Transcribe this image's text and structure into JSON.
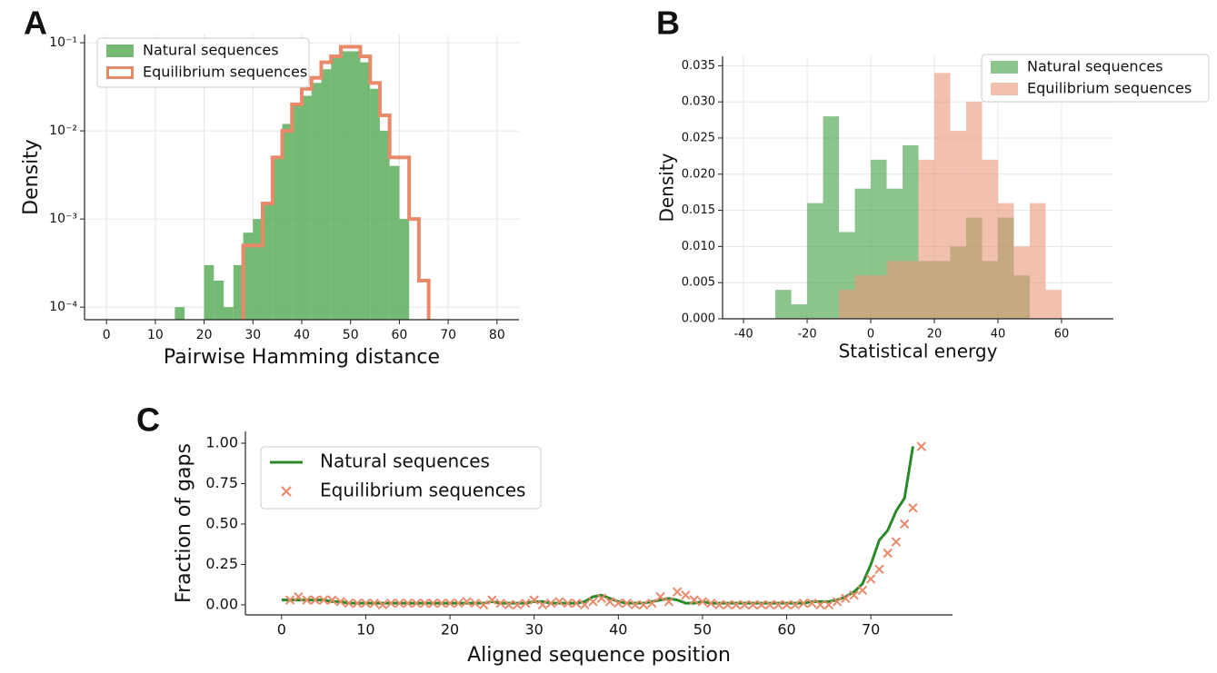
{
  "chart_data": [
    {
      "type": "histogram",
      "panel": "A",
      "xlabel": "Pairwise Hamming distance",
      "ylabel": "Density",
      "yscale": "log",
      "grid": true,
      "legend": "upper left",
      "xlim": [
        -4.5,
        84.5
      ],
      "ylim": [
        7.2e-05,
        0.124
      ],
      "xticks": [
        0,
        10,
        20,
        30,
        40,
        50,
        60,
        70,
        80
      ],
      "yticks": [
        {
          "value": 0.0001,
          "label": "10⁻⁴"
        },
        {
          "value": 0.001,
          "label": "10⁻³"
        },
        {
          "value": 0.01,
          "label": "10⁻²"
        },
        {
          "value": 0.1,
          "label": "10⁻¹"
        }
      ],
      "series": [
        {
          "name": "Natural sequences",
          "style": "filled",
          "color": "#4da64d",
          "bins": [
            14,
            16,
            18,
            20,
            22,
            24,
            26,
            28,
            30,
            32,
            34,
            36,
            38,
            40,
            42,
            44,
            46,
            48,
            50,
            52,
            54,
            56,
            58,
            60,
            62
          ],
          "values": [
            0.0001,
            0,
            0,
            0.0003,
            0.0002,
            0.0001,
            0.0003,
            0.0007,
            0.001,
            0.0015,
            0.005,
            0.012,
            0.02,
            0.025,
            0.035,
            0.05,
            0.07,
            0.08,
            0.08,
            0.06,
            0.03,
            0.01,
            0.004,
            0.001
          ]
        },
        {
          "name": "Equilibrium sequences",
          "style": "step",
          "color": "#e8896a",
          "bins": [
            28,
            30,
            32,
            34,
            36,
            38,
            40,
            42,
            44,
            46,
            48,
            50,
            52,
            54,
            56,
            58,
            60,
            62,
            64,
            66
          ],
          "values": [
            0.0005,
            0.0005,
            0.0015,
            0.005,
            0.01,
            0.02,
            0.03,
            0.04,
            0.06,
            0.07,
            0.09,
            0.09,
            0.07,
            0.035,
            0.015,
            0.005,
            0.005,
            0.001,
            0.0002
          ]
        }
      ]
    },
    {
      "type": "histogram",
      "panel": "B",
      "xlabel": "Statistical energy",
      "ylabel": "Density",
      "yscale": "linear",
      "grid": true,
      "legend": "upper right",
      "xlim": [
        -46.6,
        76.3
      ],
      "ylim": [
        0,
        0.0363
      ],
      "xticks": [
        -40,
        -20,
        0,
        20,
        40,
        60
      ],
      "yticks": [
        {
          "value": 0,
          "label": "0.000"
        },
        0.005,
        {
          "value": 0.01,
          "label": "0.010"
        },
        0.015,
        {
          "value": 0.02,
          "label": "0.020"
        },
        0.025,
        {
          "value": 0.03,
          "label": "0.030"
        },
        0.035
      ],
      "series": [
        {
          "name": "Natural sequences",
          "style": "filled",
          "color": "#3f9f3f",
          "bins": [
            -30,
            -25,
            -20,
            -15,
            -10,
            -5,
            0,
            5,
            10,
            15,
            20,
            25,
            30,
            35,
            40,
            45,
            50
          ],
          "values": [
            0.004,
            0.002,
            0.016,
            0.028,
            0.012,
            0.018,
            0.022,
            0.018,
            0.024,
            0.008,
            0.008,
            0.01,
            0.014,
            0.008,
            0.014,
            0.006
          ]
        },
        {
          "name": "Equilibrium sequences",
          "style": "filled",
          "color": "#e9967a",
          "bins": [
            -10,
            -5,
            0,
            5,
            10,
            15,
            20,
            25,
            30,
            35,
            40,
            45,
            50,
            55,
            60
          ],
          "values": [
            0.004,
            0.006,
            0.006,
            0.008,
            0.008,
            0.022,
            0.034,
            0.026,
            0.03,
            0.022,
            0.016,
            0.01,
            0.016,
            0.004
          ]
        }
      ]
    },
    {
      "type": "line",
      "panel": "C",
      "xlabel": "Aligned sequence position",
      "ylabel": "Fraction of gaps",
      "yscale": "linear",
      "grid": false,
      "legend": "upper left",
      "xlim": [
        -4.3,
        79.7
      ],
      "ylim": [
        -0.062,
        1.073
      ],
      "xticks": [
        0,
        10,
        20,
        30,
        40,
        50,
        60,
        70
      ],
      "yticks": [
        {
          "value": 0,
          "label": "0.00"
        },
        0.25,
        {
          "value": 0.5,
          "label": "0.50"
        },
        0.75,
        {
          "value": 1,
          "label": "1.00"
        }
      ],
      "series": [
        {
          "name": "Natural sequences",
          "style": "line",
          "color": "#2a8a2a",
          "x": [
            0,
            1,
            2,
            3,
            4,
            5,
            6,
            7,
            8,
            9,
            10,
            11,
            12,
            13,
            14,
            15,
            16,
            17,
            18,
            19,
            20,
            21,
            22,
            23,
            24,
            25,
            26,
            27,
            28,
            29,
            30,
            31,
            32,
            33,
            34,
            35,
            36,
            37,
            38,
            39,
            40,
            41,
            42,
            43,
            44,
            45,
            46,
            47,
            48,
            49,
            50,
            51,
            52,
            53,
            54,
            55,
            56,
            57,
            58,
            59,
            60,
            61,
            62,
            63,
            64,
            65,
            66,
            67,
            68,
            69,
            70,
            71,
            72,
            73,
            74,
            75
          ],
          "values": [
            0.03,
            0.03,
            0.03,
            0.03,
            0.03,
            0.03,
            0.02,
            0.02,
            0.01,
            0.01,
            0.01,
            0.01,
            0.01,
            0.01,
            0.01,
            0.01,
            0.01,
            0.01,
            0.01,
            0.01,
            0.01,
            0.01,
            0.01,
            0.01,
            0.01,
            0.02,
            0.01,
            0.01,
            0.01,
            0.01,
            0.02,
            0.02,
            0.01,
            0.01,
            0.01,
            0.01,
            0.02,
            0.05,
            0.06,
            0.04,
            0.02,
            0.01,
            0.01,
            0.01,
            0.02,
            0.03,
            0.04,
            0.03,
            0.01,
            0.01,
            0.02,
            0.01,
            0.01,
            0.01,
            0.01,
            0.01,
            0.01,
            0.01,
            0.01,
            0.01,
            0.01,
            0.01,
            0.01,
            0.02,
            0.02,
            0.02,
            0.03,
            0.05,
            0.08,
            0.13,
            0.25,
            0.4,
            0.46,
            0.58,
            0.66,
            0.98
          ]
        },
        {
          "name": "Equilibrium sequences",
          "style": "scatter",
          "color": "#e8896a",
          "x": [
            1,
            2,
            3,
            4,
            5,
            6,
            7,
            8,
            9,
            10,
            11,
            12,
            13,
            14,
            15,
            16,
            17,
            18,
            19,
            20,
            21,
            22,
            23,
            24,
            25,
            26,
            27,
            28,
            29,
            30,
            31,
            32,
            33,
            34,
            35,
            36,
            37,
            38,
            39,
            40,
            41,
            42,
            43,
            44,
            45,
            46,
            47,
            48,
            49,
            50,
            51,
            52,
            53,
            54,
            55,
            56,
            57,
            58,
            59,
            60,
            61,
            62,
            63,
            64,
            65,
            66,
            67,
            68,
            69,
            70,
            71,
            72,
            73,
            74,
            75,
            76
          ],
          "values": [
            0.03,
            0.05,
            0.03,
            0.03,
            0.03,
            0.03,
            0.02,
            0.01,
            0.01,
            0.01,
            0.01,
            0,
            0.01,
            0.01,
            0.01,
            0.01,
            0.01,
            0.01,
            0.01,
            0.01,
            0.01,
            0.02,
            0.01,
            0,
            0.03,
            0.01,
            0,
            0,
            0.01,
            0.03,
            0,
            0.01,
            0.02,
            0.01,
            0.01,
            0,
            0.02,
            0.04,
            0.02,
            0.01,
            0.01,
            0,
            0,
            0.01,
            0.05,
            0.02,
            0.08,
            0.06,
            0.03,
            0.02,
            0.01,
            0,
            0,
            0,
            0,
            0,
            0,
            0,
            0,
            0,
            0,
            0.01,
            0.01,
            0,
            0,
            0.02,
            0.04,
            0.06,
            0.09,
            0.16,
            0.22,
            0.32,
            0.39,
            0.5,
            0.6,
            0.98
          ]
        }
      ]
    }
  ]
}
